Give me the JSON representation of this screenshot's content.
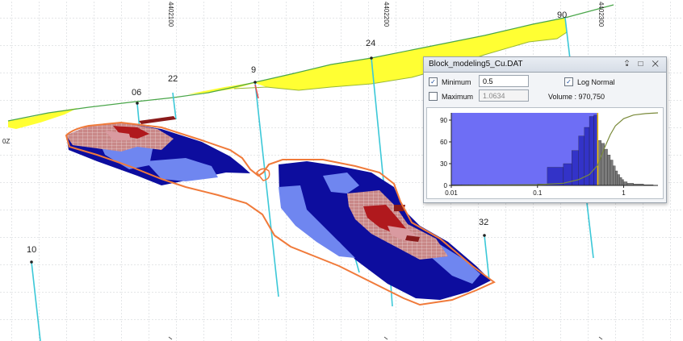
{
  "section": {
    "northing_labels": [
      "4402100",
      "4402200",
      "4402300"
    ],
    "drillhole_labels": [
      "06",
      "22",
      "9",
      "24",
      "90",
      "10",
      "32"
    ],
    "side_label": "0Z"
  },
  "panel": {
    "title": "Block_modeling5_Cu.DAT",
    "controls": {
      "pin": "⮸",
      "restore": "□",
      "close": "✕"
    },
    "minimum_label": "Minimum",
    "minimum_checked": true,
    "minimum_value": "0.5",
    "maximum_label": "Maximum",
    "maximum_checked": false,
    "maximum_value": "1.0634",
    "log_normal_label": "Log Normal",
    "log_normal_checked": true,
    "volume_text": "Volume : 970,750"
  },
  "chart_data": {
    "type": "bar",
    "x_scale": "log",
    "xlim": [
      0.01,
      2.5
    ],
    "ylim": [
      0,
      100
    ],
    "x_ticks": [
      "0.01",
      "0.1",
      "1"
    ],
    "y_ticks": [
      "0",
      "30",
      "60",
      "90"
    ],
    "threshold": 0.5,
    "colors": {
      "selected": "#6e6ef5",
      "selected_dark": "#3333c8",
      "excluded": "#7b7b7b",
      "cumulative": "#7a8a3a",
      "threshold": "#f5c400"
    },
    "bins": [
      {
        "x0": 0.01,
        "x1": 0.013,
        "value": 1
      },
      {
        "x0": 0.013,
        "x1": 0.016,
        "value": 1
      },
      {
        "x0": 0.016,
        "x1": 0.02,
        "value": 1
      },
      {
        "x0": 0.02,
        "x1": 0.025,
        "value": 1
      },
      {
        "x0": 0.025,
        "x1": 0.032,
        "value": 1
      },
      {
        "x0": 0.032,
        "x1": 0.04,
        "value": 1
      },
      {
        "x0": 0.04,
        "x1": 0.05,
        "value": 1
      },
      {
        "x0": 0.05,
        "x1": 0.063,
        "value": 1
      },
      {
        "x0": 0.063,
        "x1": 0.08,
        "value": 1
      },
      {
        "x0": 0.08,
        "x1": 0.1,
        "value": 1
      },
      {
        "x0": 0.1,
        "x1": 0.13,
        "value": 2
      },
      {
        "x0": 0.13,
        "x1": 0.2,
        "value": 25
      },
      {
        "x0": 0.2,
        "x1": 0.25,
        "value": 30
      },
      {
        "x0": 0.25,
        "x1": 0.3,
        "value": 48
      },
      {
        "x0": 0.3,
        "x1": 0.35,
        "value": 68
      },
      {
        "x0": 0.35,
        "x1": 0.4,
        "value": 80
      },
      {
        "x0": 0.4,
        "x1": 0.45,
        "value": 95
      },
      {
        "x0": 0.45,
        "x1": 0.5,
        "value": 97
      },
      {
        "x0": 0.5,
        "x1": 0.55,
        "value": 62
      },
      {
        "x0": 0.55,
        "x1": 0.6,
        "value": 58
      },
      {
        "x0": 0.6,
        "x1": 0.65,
        "value": 50
      },
      {
        "x0": 0.65,
        "x1": 0.7,
        "value": 42
      },
      {
        "x0": 0.7,
        "x1": 0.75,
        "value": 35
      },
      {
        "x0": 0.75,
        "x1": 0.8,
        "value": 27
      },
      {
        "x0": 0.8,
        "x1": 0.85,
        "value": 20
      },
      {
        "x0": 0.85,
        "x1": 0.9,
        "value": 15
      },
      {
        "x0": 0.9,
        "x1": 0.95,
        "value": 11
      },
      {
        "x0": 0.95,
        "x1": 1.0,
        "value": 8
      },
      {
        "x0": 1.0,
        "x1": 1.1,
        "value": 5
      },
      {
        "x0": 1.1,
        "x1": 1.3,
        "value": 3
      },
      {
        "x0": 1.3,
        "x1": 1.7,
        "value": 2
      },
      {
        "x0": 1.7,
        "x1": 2.2,
        "value": 1
      }
    ],
    "cumulative": [
      {
        "x": 0.01,
        "y": 0
      },
      {
        "x": 0.1,
        "y": 1
      },
      {
        "x": 0.2,
        "y": 3
      },
      {
        "x": 0.3,
        "y": 8
      },
      {
        "x": 0.4,
        "y": 15
      },
      {
        "x": 0.5,
        "y": 28
      },
      {
        "x": 0.6,
        "y": 52
      },
      {
        "x": 0.7,
        "y": 70
      },
      {
        "x": 0.8,
        "y": 82
      },
      {
        "x": 1.0,
        "y": 92
      },
      {
        "x": 1.3,
        "y": 97
      },
      {
        "x": 1.8,
        "y": 99
      },
      {
        "x": 2.5,
        "y": 100
      }
    ]
  }
}
